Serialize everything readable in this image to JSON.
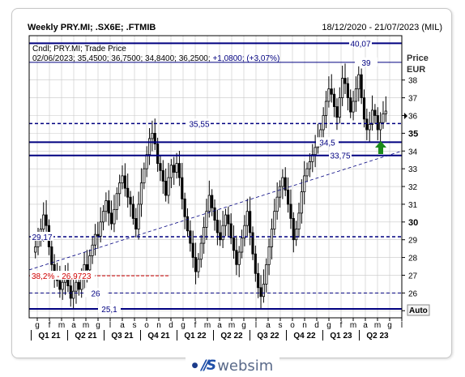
{
  "header": {
    "title": "Weekly PRY.MI; .SX6E; .FTMIB",
    "date_range": "18/12/2020 - 21/07/2023 (MIL)"
  },
  "info": {
    "line1": "Cndl; PRY.MI; Trade Price",
    "line2_prefix": "02/06/2023; 35,4500; 36,7500; 34,8400; 36,2500;",
    "line2_change": "+1,0800; (+3,07%)"
  },
  "axis": {
    "unit_top": "Price",
    "unit_bottom": "EUR",
    "ticks": [
      "38",
      "37",
      "36",
      "35",
      "34",
      "33",
      "32",
      "31",
      "30",
      "29",
      "28",
      "27",
      "26",
      "25"
    ],
    "auto_label": "Auto",
    "month_ticks": [
      "g",
      "f",
      "m",
      "a",
      "m",
      "g",
      "l",
      "a",
      "s",
      "o",
      "n",
      "d",
      "g",
      "f",
      "m",
      "a",
      "m",
      "g",
      "l",
      "a",
      "s",
      "o",
      "n",
      "d",
      "g",
      "f",
      "m",
      "a",
      "m",
      "g",
      "l"
    ],
    "quarters": [
      "Q1 21",
      "Q2 21",
      "Q3 21",
      "Q4 21",
      "Q1 22",
      "Q2 22",
      "Q3 22",
      "Q4 22",
      "Q1 23",
      "Q2 23"
    ]
  },
  "chart_data": {
    "type": "candlestick",
    "title": "Weekly PRY.MI; .SX6E; .FTMIB",
    "ylabel": "Price EUR",
    "ylim": [
      24.6,
      40.5
    ],
    "x_range": [
      "2020-12-18",
      "2023-07-21"
    ],
    "last_candle": {
      "date": "02/06/2023",
      "open": 35.45,
      "high": 36.75,
      "low": 34.84,
      "close": 36.25,
      "change": 1.08,
      "change_pct": 3.07
    },
    "closes": [
      28.6,
      29.2,
      29.6,
      30.4,
      29.8,
      28.6,
      27.6,
      27.0,
      26.7,
      26.2,
      26.6,
      27.1,
      26.4,
      25.7,
      26.1,
      26.6,
      26.2,
      26.8,
      27.6,
      27.3,
      28.1,
      28.7,
      29.3,
      29.2,
      30.0,
      30.6,
      31.2,
      30.5,
      29.9,
      30.7,
      31.6,
      32.2,
      32.6,
      31.9,
      31.4,
      31.0,
      30.2,
      29.6,
      31.0,
      32.2,
      33.0,
      33.8,
      34.7,
      35.0,
      34.4,
      33.3,
      32.9,
      32.3,
      31.5,
      32.5,
      33.2,
      32.8,
      33.3,
      32.5,
      31.3,
      30.3,
      29.5,
      28.8,
      28.0,
      27.2,
      27.9,
      28.8,
      29.7,
      30.6,
      31.5,
      30.8,
      30.1,
      29.4,
      29.0,
      29.8,
      30.4,
      29.9,
      29.1,
      28.4,
      27.6,
      28.3,
      29.1,
      29.8,
      30.6,
      29.4,
      28.2,
      27.1,
      26.3,
      25.8,
      26.5,
      27.6,
      28.6,
      29.6,
      30.6,
      31.4,
      32.0,
      32.5,
      31.8,
      31.0,
      30.2,
      29.0,
      29.6,
      30.5,
      31.7,
      32.6,
      33.0,
      33.4,
      33.8,
      34.2,
      34.7,
      35.2,
      36.0,
      36.8,
      37.5,
      37.2,
      36.5,
      35.9,
      37.0,
      38.1,
      37.8,
      37.0,
      36.2,
      36.8,
      37.5,
      38.3,
      37.0,
      35.8,
      35.2,
      35.5,
      36.3,
      36.0,
      35.2,
      35.6,
      36.1,
      36.25
    ],
    "levels": [
      {
        "label": "40,07",
        "value": 40.07,
        "style": "solid"
      },
      {
        "label": "39",
        "value": 39.0,
        "style": "solid-thin"
      },
      {
        "label": "35,55",
        "value": 35.55,
        "style": "dashed"
      },
      {
        "label": "34,5",
        "value": 34.5,
        "style": "solid"
      },
      {
        "label": "33,75",
        "value": 33.75,
        "style": "solid"
      },
      {
        "label": "29,17",
        "value": 29.17,
        "style": "dashed"
      },
      {
        "label": "26",
        "value": 26.0,
        "style": "dashed-thin"
      },
      {
        "label": "25,1",
        "value": 25.1,
        "style": "solid"
      }
    ],
    "fib": {
      "label": "38,2% - 26,9723",
      "value": 26.9723
    },
    "trendline": {
      "start": [
        "2020-12-18",
        27.3
      ],
      "end": [
        "2023-07-21",
        34.0
      ]
    }
  },
  "colors": {
    "level": "#000080",
    "fib": "#d00000",
    "candle": "#000000",
    "grid": "#c8c8c8",
    "arrow": "#1a8a1a"
  },
  "logo": {
    "text": "websim"
  }
}
